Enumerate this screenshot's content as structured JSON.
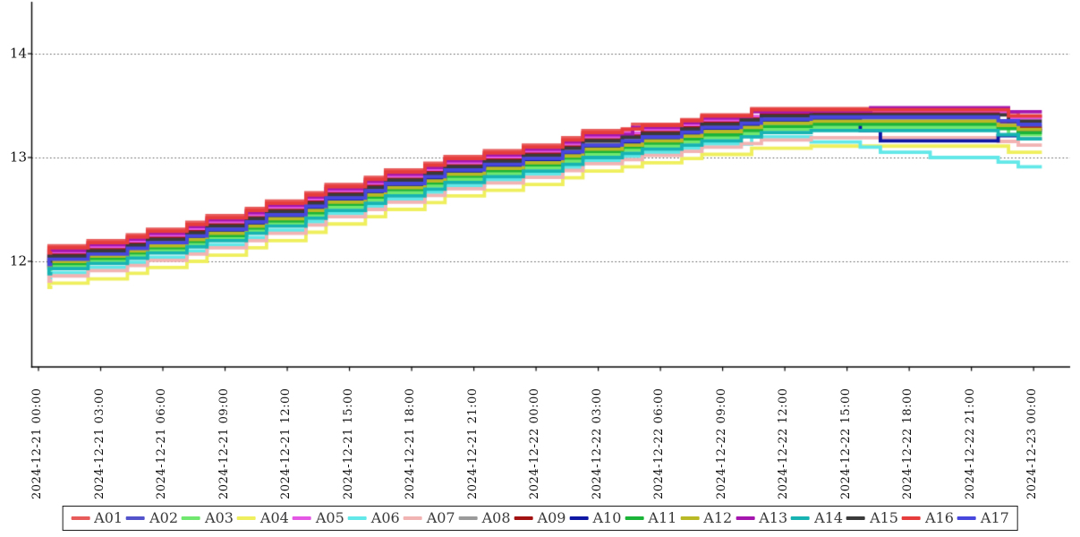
{
  "chart_data": {
    "type": "line",
    "step_style": true,
    "title": "",
    "xlabel": "",
    "ylabel": "",
    "grid": "horizontal dotted",
    "legend_position": "bottom center outside",
    "y_ticks": [
      12,
      13,
      14
    ],
    "y_range": [
      10.98,
      14.5
    ],
    "x_range_hours": [
      -0.35,
      49.8
    ],
    "x_tick_hours": [
      0,
      3,
      6,
      9,
      12,
      15,
      18,
      21,
      24,
      27,
      30,
      33,
      36,
      39,
      42,
      45,
      48
    ],
    "x_tick_labels": [
      "2024-12-21 00:00",
      "2024-12-21 03:00",
      "2024-12-21 06:00",
      "2024-12-21 09:00",
      "2024-12-21 12:00",
      "2024-12-21 15:00",
      "2024-12-21 18:00",
      "2024-12-21 21:00",
      "2024-12-22 00:00",
      "2024-12-22 03:00",
      "2024-12-22 06:00",
      "2024-12-22 09:00",
      "2024-12-22 12:00",
      "2024-12-22 15:00",
      "2024-12-22 18:00",
      "2024-12-22 21:00",
      "2024-12-23 00:00"
    ],
    "series": [
      {
        "name": "A01",
        "color": "#e85b5b",
        "values": [
          12.1,
          12.2,
          12.31,
          12.44,
          12.58,
          12.74,
          12.88,
          13.01,
          13.12,
          13.26,
          13.32,
          13.41,
          13.47,
          13.47,
          13.47,
          13.47,
          13.4
        ]
      },
      {
        "name": "A02",
        "color": "#5353cb",
        "values": [
          11.94,
          12.05,
          12.16,
          12.29,
          12.43,
          12.59,
          12.73,
          12.86,
          12.97,
          13.1,
          13.18,
          13.27,
          13.36,
          13.38,
          13.38,
          13.38,
          13.3
        ]
      },
      {
        "name": "A03",
        "color": "#70e870",
        "values": [
          11.9,
          12.0,
          12.1,
          12.22,
          12.36,
          12.52,
          12.66,
          12.79,
          12.9,
          13.03,
          13.11,
          13.19,
          13.27,
          13.29,
          13.29,
          13.29,
          13.22
        ]
      },
      {
        "name": "A04",
        "color": "#efef5e",
        "values": [
          11.75,
          11.83,
          11.94,
          12.06,
          12.2,
          12.36,
          12.5,
          12.63,
          12.74,
          12.87,
          12.95,
          13.03,
          13.09,
          13.11,
          13.11,
          13.11,
          13.05
        ]
      },
      {
        "name": "A05",
        "color": "#e457e4",
        "values": [
          12.03,
          12.14,
          12.25,
          12.38,
          12.52,
          12.68,
          12.82,
          12.95,
          13.06,
          13.2,
          13.27,
          13.36,
          13.43,
          13.44,
          13.44,
          13.44,
          13.38
        ]
      },
      {
        "name": "A06",
        "color": "#62e8e8",
        "values": [
          11.84,
          11.94,
          12.04,
          12.16,
          12.3,
          12.46,
          12.6,
          12.73,
          12.84,
          12.97,
          13.05,
          13.13,
          13.2,
          13.15,
          13.05,
          13.0,
          12.91
        ]
      },
      {
        "name": "A07",
        "color": "#f2b3b3",
        "values": [
          11.81,
          11.91,
          12.01,
          12.13,
          12.27,
          12.43,
          12.57,
          12.7,
          12.81,
          12.94,
          13.02,
          13.1,
          13.17,
          13.19,
          13.19,
          13.19,
          13.12
        ]
      },
      {
        "name": "A08",
        "color": "#9a9a9a",
        "values": [
          11.99,
          12.09,
          12.2,
          12.33,
          12.47,
          12.63,
          12.77,
          12.9,
          13.01,
          13.14,
          13.21,
          13.3,
          13.38,
          13.4,
          13.4,
          13.4,
          13.18
        ]
      },
      {
        "name": "A09",
        "color": "#a31212",
        "values": [
          12.01,
          12.11,
          12.22,
          12.35,
          12.49,
          12.65,
          12.79,
          12.92,
          13.03,
          13.17,
          13.24,
          13.33,
          13.41,
          13.42,
          13.42,
          13.42,
          13.28
        ]
      },
      {
        "name": "A10",
        "color": "#0d17a3",
        "values": [
          11.96,
          12.06,
          12.16,
          12.28,
          12.42,
          12.58,
          12.72,
          12.85,
          12.96,
          13.09,
          13.17,
          13.26,
          13.34,
          13.36,
          13.16,
          13.16,
          13.26
        ]
      },
      {
        "name": "A11",
        "color": "#1cb438",
        "values": [
          11.93,
          12.03,
          12.13,
          12.25,
          12.39,
          12.55,
          12.69,
          12.82,
          12.93,
          13.06,
          13.14,
          13.22,
          13.3,
          13.32,
          13.32,
          13.32,
          13.24
        ]
      },
      {
        "name": "A12",
        "color": "#b9b925",
        "values": [
          11.95,
          12.05,
          12.15,
          12.27,
          12.41,
          12.57,
          12.71,
          12.84,
          12.95,
          13.08,
          13.16,
          13.25,
          13.33,
          13.35,
          13.35,
          13.35,
          13.27
        ]
      },
      {
        "name": "A13",
        "color": "#a416ad",
        "values": [
          12.05,
          12.16,
          12.27,
          12.4,
          12.54,
          12.7,
          12.84,
          12.97,
          13.08,
          13.22,
          13.29,
          13.38,
          13.44,
          13.45,
          13.48,
          13.48,
          13.44
        ]
      },
      {
        "name": "A14",
        "color": "#17b3b3",
        "values": [
          11.88,
          11.98,
          12.08,
          12.2,
          12.34,
          12.49,
          12.63,
          12.76,
          12.87,
          13.0,
          13.08,
          13.16,
          13.24,
          13.26,
          13.26,
          13.26,
          13.18
        ]
      },
      {
        "name": "A15",
        "color": "#3a3a3a",
        "values": [
          12.0,
          12.1,
          12.21,
          12.34,
          12.48,
          12.64,
          12.78,
          12.91,
          13.02,
          13.16,
          13.23,
          13.32,
          13.4,
          13.41,
          13.41,
          13.41,
          13.35
        ]
      },
      {
        "name": "A16",
        "color": "#e73c3c",
        "values": [
          12.08,
          12.18,
          12.29,
          12.42,
          12.56,
          12.72,
          12.86,
          12.99,
          13.1,
          13.24,
          13.31,
          13.4,
          13.46,
          13.46,
          13.46,
          13.46,
          13.4
        ]
      },
      {
        "name": "A17",
        "color": "#4747dd",
        "values": [
          11.97,
          12.07,
          12.18,
          12.31,
          12.45,
          12.61,
          12.75,
          12.88,
          12.99,
          13.12,
          13.2,
          13.29,
          13.37,
          13.39,
          13.39,
          13.39,
          13.32
        ]
      }
    ]
  },
  "colors": {
    "background": "#ffffff",
    "axis": "#000000",
    "gridline": "#555555",
    "tick_text": "#111111",
    "legend_border": "#1a1a1a"
  }
}
